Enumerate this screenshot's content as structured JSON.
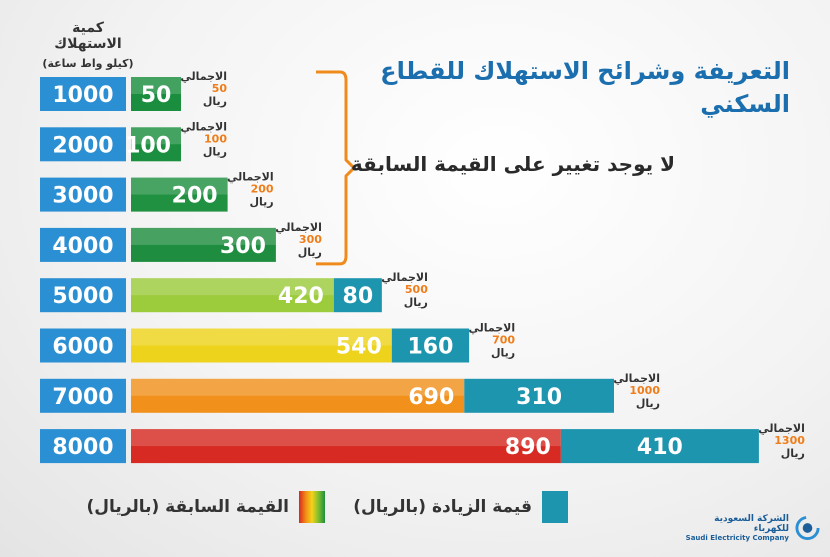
{
  "header": {
    "title": "التعريفة وشرائح الاستهلاك للقطاع السكني",
    "no_change_note": "لا يوجد تغيير على القيمة السابقة"
  },
  "legend": {
    "increase_label": "قيمة الزيادة (بالريال)",
    "previous_label": "القيمة السابقة (بالريال)"
  },
  "company": {
    "name_ar": "الشركة السعودية للكهرباء",
    "name_en": "Saudi Electricity Company"
  },
  "chart_data": {
    "type": "bar",
    "orientation": "horizontal",
    "stacked": true,
    "title": "التعريفة وشرائح الاستهلاك للقطاع السكني",
    "ylabel": "كمية الاستهلاك",
    "ylabel_unit": "(كيلو واط ساعة)",
    "categories": [
      "1000",
      "2000",
      "3000",
      "4000",
      "5000",
      "6000",
      "7000",
      "8000"
    ],
    "series": [
      {
        "name": "القيمة السابقة (بالريال)",
        "values": [
          50,
          100,
          200,
          300,
          420,
          540,
          690,
          890
        ]
      },
      {
        "name": "قيمة الزيادة (بالريال)",
        "values": [
          0,
          0,
          0,
          0,
          80,
          160,
          310,
          410
        ]
      }
    ],
    "totals": [
      50,
      100,
      200,
      300,
      500,
      700,
      1000,
      1300
    ],
    "total_label": "الاجمالي",
    "currency_label": "ريال",
    "colors": {
      "category_box": "#2b8fd3",
      "increase": "#1d95ae",
      "total_value": "#ef7d1a",
      "bracket": "#ef8a1c",
      "previous": [
        "#1a8e3e",
        "#1b8f3f",
        "#1f9141",
        "#1f8d3f",
        "#9ccb3b",
        "#eed31c",
        "#f1911b",
        "#d62a23"
      ]
    }
  }
}
